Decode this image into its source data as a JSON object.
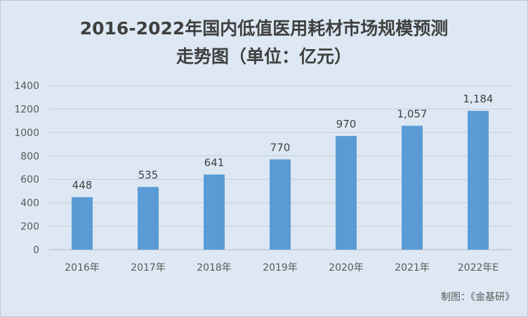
{
  "chart_data": {
    "type": "bar",
    "title_line1": "2016-2022年国内低值医用耗材市场规模预测",
    "title_line2": "走势图（单位：亿元）",
    "categories": [
      "2016年",
      "2017年",
      "2018年",
      "2019年",
      "2020年",
      "2021年",
      "2022年E"
    ],
    "values": [
      448,
      535,
      641,
      770,
      970,
      1057,
      1184
    ],
    "value_labels": [
      "448",
      "535",
      "641",
      "770",
      "970",
      "1,057",
      "1,184"
    ],
    "ylim": [
      0,
      1400
    ],
    "yticks": [
      0,
      200,
      400,
      600,
      800,
      1000,
      1200,
      1400
    ],
    "grid": true,
    "legend": false,
    "colors": {
      "bar": "#5b9bd5",
      "grid": "#c4ccd6",
      "background": "#dde8f4"
    }
  },
  "source": "制图：《金基研》"
}
